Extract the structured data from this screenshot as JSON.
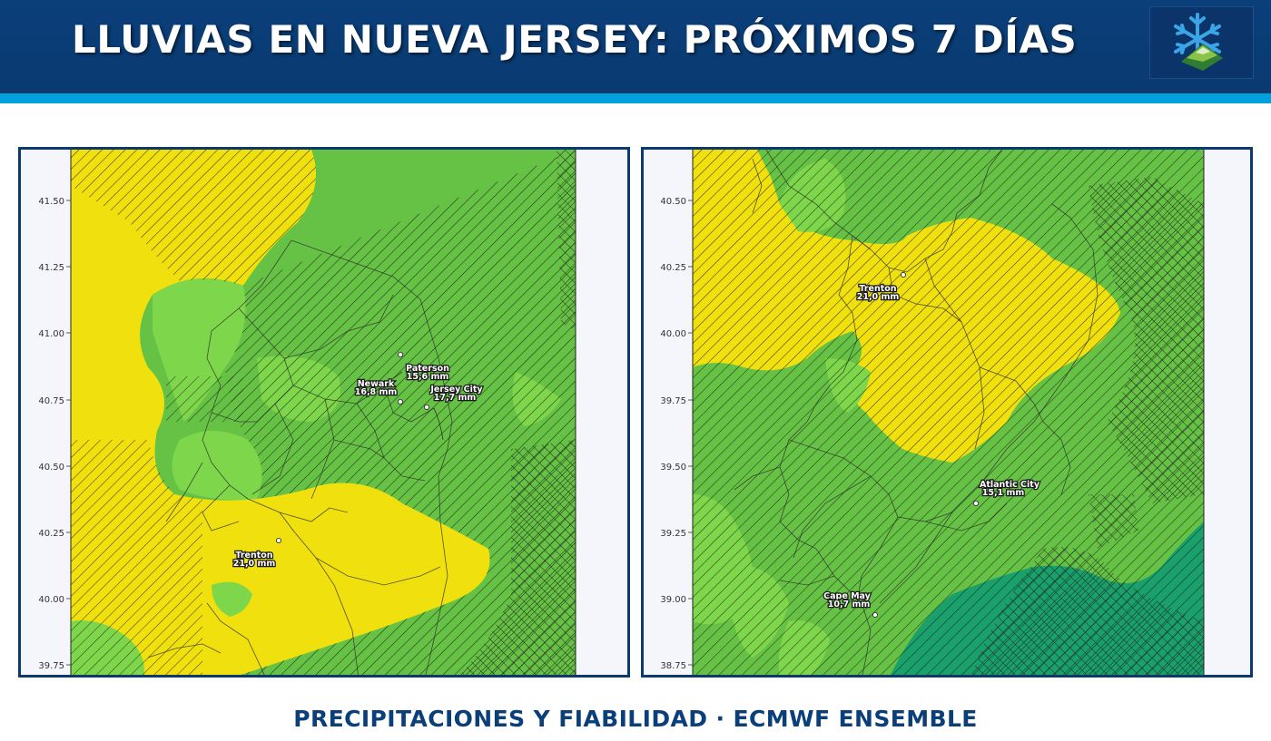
{
  "header": {
    "title": "LLUVIAS EN NUEVA JERSEY: PRÓXIMOS 7 DÍAS",
    "logo_icon": "snowflake-mountain-icon",
    "background_color": "#0b3f7a",
    "stripe_color": "#00a0dc"
  },
  "footer": {
    "subtitle": "PRECIPITACIONES Y FIABILIDAD · ECMWF ENSEMBLE"
  },
  "colors": {
    "yellow": "#f0e00e",
    "light_green": "#7ed64a",
    "green": "#66c244",
    "teal_green": "#1aa06a",
    "hatch": "#1a1a1a",
    "frame": "#0b3a6e"
  },
  "maps": [
    {
      "name": "north",
      "ytick_labels": [
        "41.50",
        "41.25",
        "41.00",
        "40.75",
        "40.50",
        "40.25",
        "40.00",
        "39.75"
      ],
      "cities": [
        {
          "name": "Paterson",
          "value": "15,6 mm"
        },
        {
          "name": "Newark",
          "value": "16,8 mm"
        },
        {
          "name": "Jersey City",
          "value": "17,7 mm"
        },
        {
          "name": "Trenton",
          "value": "21,0 mm"
        }
      ]
    },
    {
      "name": "south",
      "ytick_labels": [
        "40.50",
        "40.25",
        "40.00",
        "39.75",
        "39.50",
        "39.25",
        "39.00",
        "38.75"
      ],
      "cities": [
        {
          "name": "Trenton",
          "value": "21,0 mm"
        },
        {
          "name": "Atlantic City",
          "value": "15,1 mm"
        },
        {
          "name": "Cape May",
          "value": "10,7 mm"
        }
      ]
    }
  ]
}
